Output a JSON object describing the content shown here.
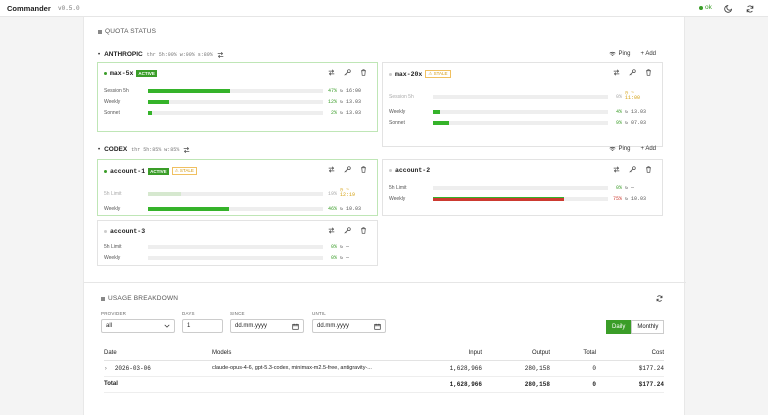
{
  "app": {
    "title": "Commander",
    "version": "v0.5.0",
    "status": "ok"
  },
  "quota": {
    "title": "QUOTA STATUS",
    "providers": [
      {
        "name": "ANTHROPIC",
        "thresholds": "thr 5h:90% w:90% s:80%",
        "ping_label": "Ping",
        "add_label": "+ Add",
        "accounts": [
          {
            "name": "max-5x",
            "badge": "ACTIVE",
            "rows": [
              {
                "label": "Session 5h",
                "value": 0.47,
                "pct": "47%",
                "reset": "↻ 16:00"
              },
              {
                "label": "Weekly",
                "value": 0.12,
                "pct": "12%",
                "reset": "↻ 13.03"
              },
              {
                "label": "Sonnet",
                "value": 0.02,
                "pct": "2%",
                "reset": "↻ 13.03"
              }
            ]
          },
          {
            "name": "max-20x",
            "badge": "STALE",
            "rows": [
              {
                "label": "Session 5h",
                "value": 0.0,
                "pct": "0%",
                "reset": "◷ ~ 11:00"
              },
              {
                "label": "Weekly",
                "value": 0.04,
                "pct": "4%",
                "reset": "↻ 13.03"
              },
              {
                "label": "Sonnet",
                "value": 0.09,
                "pct": "9%",
                "reset": "↻ 07.03"
              }
            ]
          }
        ]
      },
      {
        "name": "CODEX",
        "thresholds": "thr 5h:85% w:85%",
        "ping_label": "Ping",
        "add_label": "+ Add",
        "accounts": [
          {
            "name": "account-1",
            "badge": "ACTIVE",
            "badge2": "STALE",
            "rows": [
              {
                "label": "5h Limit",
                "value": 0.19,
                "pct": "19%",
                "reset": "◷ ~ 12:19"
              },
              {
                "label": "Weekly",
                "value": 0.46,
                "pct": "46%",
                "reset": "↻ 10.03"
              }
            ]
          },
          {
            "name": "account-2",
            "rows": [
              {
                "label": "5h Limit",
                "value": 0.0,
                "pct": "0%",
                "reset": "↻ —"
              },
              {
                "label": "Weekly",
                "value": 0.75,
                "pct": "75%",
                "reset": "↻ 10.03"
              }
            ]
          },
          {
            "name": "account-3",
            "rows": [
              {
                "label": "5h Limit",
                "value": 0.0,
                "pct": "0%",
                "reset": "↻ —"
              },
              {
                "label": "Weekly",
                "value": 0.0,
                "pct": "0%",
                "reset": "↻ —"
              }
            ]
          }
        ]
      }
    ]
  },
  "usage": {
    "title": "USAGE BREAKDOWN",
    "filters": {
      "provider_label": "PROVIDER",
      "provider_value": "all",
      "days_label": "DAYS",
      "days_value": "1",
      "since_label": "SINCE",
      "since_value": "dd.mm.yyyy",
      "until_label": "UNTIL",
      "until_value": "dd.mm.yyyy"
    },
    "toggle": {
      "daily": "Daily",
      "monthly": "Monthly"
    },
    "table": {
      "headers": {
        "date": "Date",
        "models": "Models",
        "input": "Input",
        "output": "Output",
        "total": "Total",
        "cost": "Cost"
      },
      "rows": [
        {
          "date": "2026-03-06",
          "models": "claude-opus-4-6, gpt-5.3-codex, minimax-m2.5-free, antigravity-...",
          "input": "1,628,966",
          "output": "280,158",
          "total": "0",
          "cost": "$177.24"
        }
      ],
      "total": {
        "label": "Total",
        "input": "1,628,966",
        "output": "280,158",
        "total": "0",
        "cost": "$177.24"
      }
    }
  }
}
